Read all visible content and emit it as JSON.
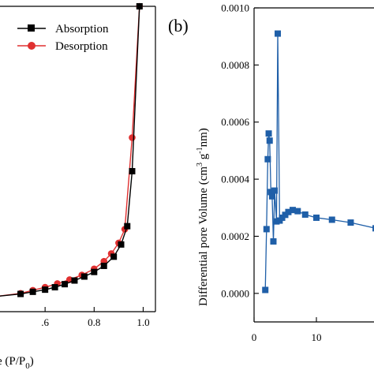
{
  "chart_data": [
    {
      "type": "line",
      "panel_label": "",
      "xlabel_parts": [
        "e (P/P",
        "0",
        ")"
      ],
      "ylabel": "",
      "xlim": [
        0.4,
        1.05
      ],
      "ylim": [
        0,
        1
      ],
      "xticks": [
        {
          "value": 0.6,
          "label": ".6"
        },
        {
          "value": 0.8,
          "label": "0.8"
        },
        {
          "value": 1.0,
          "label": "1.0"
        }
      ],
      "legend": {
        "position": "top-left"
      },
      "series": [
        {
          "name": "Absorption",
          "marker": "square",
          "color": "#000000",
          "x": [
            0.4,
            0.5,
            0.55,
            0.6,
            0.64,
            0.68,
            0.72,
            0.76,
            0.8,
            0.84,
            0.88,
            0.91,
            0.935,
            0.955,
            0.985
          ],
          "y": [
            0.05,
            0.058,
            0.065,
            0.072,
            0.08,
            0.09,
            0.102,
            0.115,
            0.13,
            0.15,
            0.18,
            0.22,
            0.28,
            0.46,
            1.0
          ]
        },
        {
          "name": "Desorption",
          "marker": "circle",
          "color": "#e03030",
          "x": [
            0.4,
            0.5,
            0.55,
            0.6,
            0.65,
            0.7,
            0.75,
            0.8,
            0.84,
            0.87,
            0.9,
            0.925,
            0.955,
            0.985
          ],
          "y": [
            0.05,
            0.06,
            0.07,
            0.08,
            0.092,
            0.105,
            0.12,
            0.14,
            0.165,
            0.19,
            0.225,
            0.27,
            0.57,
            1.0
          ]
        }
      ]
    },
    {
      "type": "scatter",
      "panel_label": "(b)",
      "ylabel": "Differential pore Volume  (cm",
      "ylabel_sup1": "3",
      "ylabel_mid": " g",
      "ylabel_sup2": "-1",
      "ylabel_end": "nm)",
      "xlabel": "",
      "xlim": [
        0,
        20
      ],
      "ylim": [
        -0.0001,
        0.001
      ],
      "yticks": [
        "0.0000",
        "0.0002",
        "0.0004",
        "0.0006",
        "0.0008",
        "0.0010"
      ],
      "ytick_values": [
        0.0,
        0.0002,
        0.0004,
        0.0006,
        0.0008,
        0.001
      ],
      "xticks": [
        "0",
        "10"
      ],
      "xtick_values": [
        0,
        10
      ],
      "series": [
        {
          "marker": "square",
          "color": "#1f5fa8",
          "x": [
            1.8,
            2.0,
            2.2,
            2.35,
            2.5,
            2.7,
            2.9,
            3.1,
            3.3,
            3.6,
            3.8,
            4.1,
            4.5,
            5.0,
            5.5,
            6.2,
            7.0,
            8.2,
            10.0,
            12.5,
            15.5,
            19.5
          ],
          "y": [
            1.2e-05,
            0.000225,
            0.00047,
            0.00056,
            0.000535,
            0.000355,
            0.00034,
            0.000182,
            0.00036,
            0.000252,
            0.00091,
            0.000255,
            0.000265,
            0.000275,
            0.000285,
            0.000292,
            0.000288,
            0.000276,
            0.000265,
            0.000258,
            0.000248,
            0.000228
          ]
        }
      ]
    }
  ],
  "legend_items": {
    "absorption": "Absorption",
    "desorption": "Desorption"
  }
}
